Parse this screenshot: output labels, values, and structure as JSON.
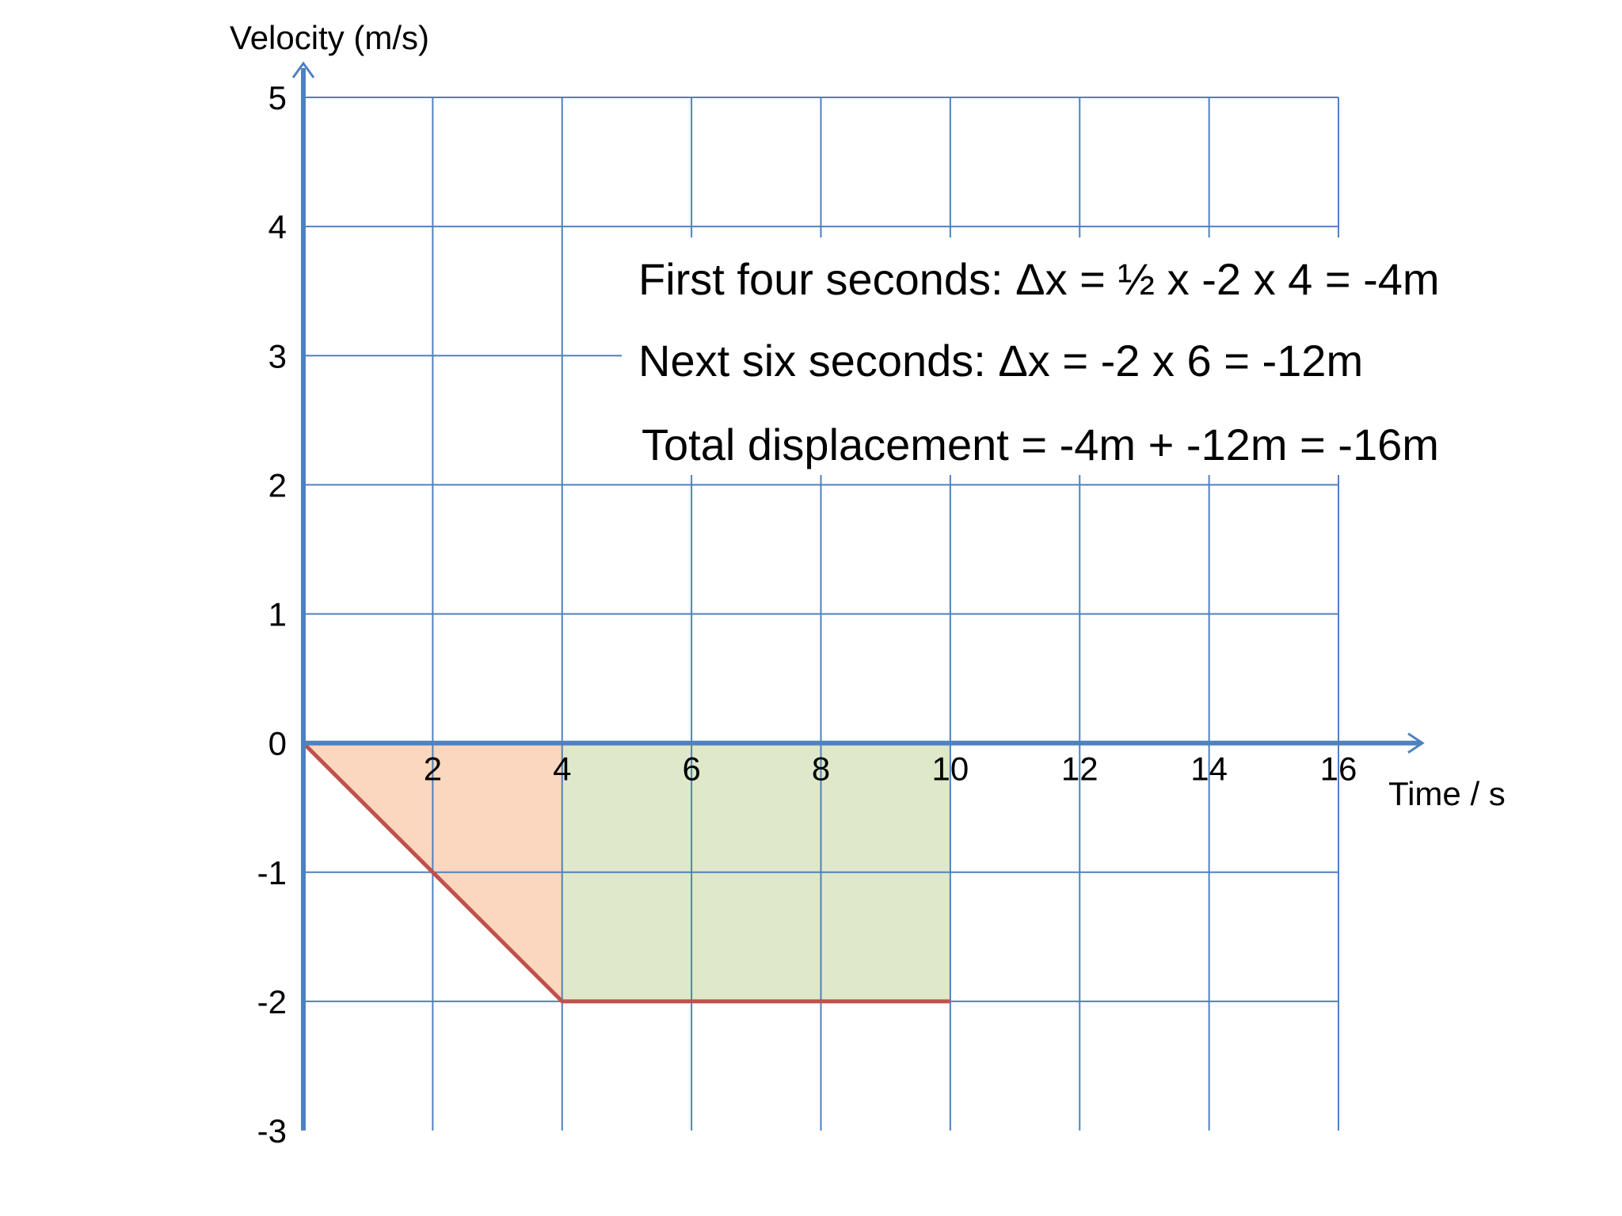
{
  "chart_data": {
    "type": "line",
    "xlabel": "Time / s",
    "ylabel": "Velocity (m/s)",
    "xlim": [
      0,
      16
    ],
    "ylim": [
      -3,
      5
    ],
    "x_ticks": [
      2,
      4,
      6,
      8,
      10,
      12,
      14,
      16
    ],
    "y_ticks": [
      5,
      4,
      3,
      2,
      1,
      0,
      -1,
      -2,
      -3
    ],
    "grid": true,
    "series": [
      {
        "x": [
          0,
          4,
          10
        ],
        "y": [
          0,
          -2,
          -2
        ]
      }
    ],
    "shaded_regions": [
      {
        "x": [
          0,
          4
        ],
        "y_from": [
          0,
          -2
        ],
        "y_to": [
          0,
          0
        ],
        "color": "#FAD7BE"
      },
      {
        "x": [
          4,
          10
        ],
        "y_from": [
          -2,
          -2
        ],
        "y_to": [
          0,
          0
        ],
        "color": "#DFE8C9"
      }
    ],
    "annotations": [
      "First four seconds: Δx = ½ x -2 x 4 = -4m",
      "Next six seconds: Δx = -2 x 6 = -12m",
      "Total displacement = -4m + -12m = -16m"
    ],
    "colors": {
      "grid": "#4F81BD",
      "axis": "#4F81BD",
      "line": "#C0504D"
    }
  }
}
